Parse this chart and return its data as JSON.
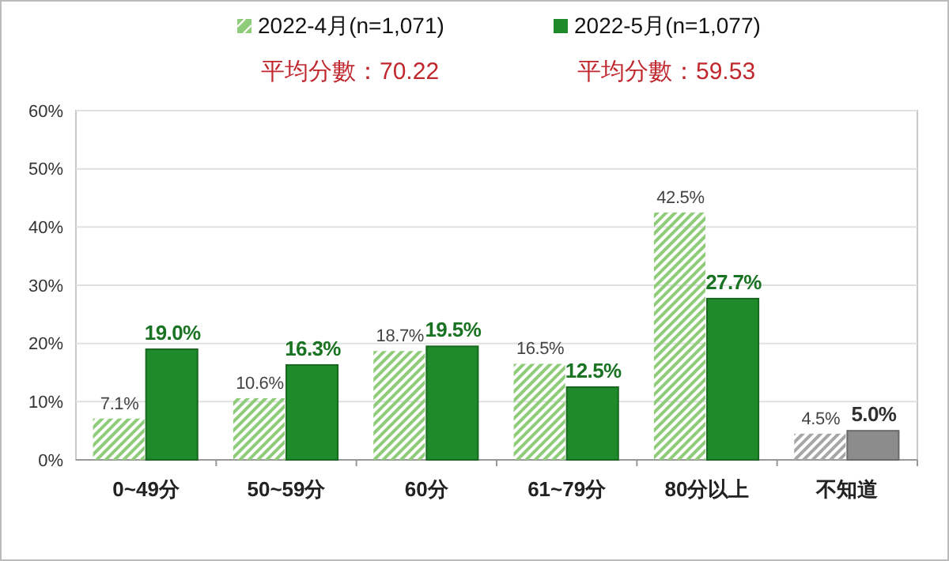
{
  "chart_data": {
    "type": "bar",
    "categories": [
      "0~49分",
      "50~59分",
      "60分",
      "61~79分",
      "80分以上",
      "不知道"
    ],
    "series": [
      {
        "name": "2022-4月(n=1,071)",
        "color": "#8fcc7a",
        "colors": [
          "#8fcc7a",
          "#8fcc7a",
          "#8fcc7a",
          "#8fcc7a",
          "#8fcc7a",
          "#a6a6a6"
        ],
        "values": [
          7.1,
          10.6,
          18.7,
          16.5,
          42.5,
          4.5
        ]
      },
      {
        "name": "2022-5月(n=1,077)",
        "color": "#1f8a2a",
        "colors": [
          "#1f8a2a",
          "#1f8a2a",
          "#1f8a2a",
          "#1f8a2a",
          "#1f8a2a",
          "#8c8c8c"
        ],
        "values": [
          19.0,
          16.3,
          19.5,
          12.5,
          27.7,
          5.0
        ]
      }
    ],
    "value_labels": [
      [
        "7.1%",
        "10.6%",
        "18.7%",
        "16.5%",
        "42.5%",
        "4.5%"
      ],
      [
        "19.0%",
        "16.3%",
        "19.5%",
        "12.5%",
        "27.7%",
        "5.0%"
      ]
    ],
    "annotations": [
      "平均分數：70.22",
      "平均分數：59.53"
    ],
    "ylim": [
      0,
      60
    ],
    "yticks": [
      {
        "value": 0,
        "label": "0%"
      },
      {
        "value": 10,
        "label": "10%"
      },
      {
        "value": 20,
        "label": "20%"
      },
      {
        "value": 30,
        "label": "30%"
      },
      {
        "value": 40,
        "label": "40%"
      },
      {
        "value": 50,
        "label": "50%"
      },
      {
        "value": 60,
        "label": "60%"
      }
    ],
    "grid": "y",
    "legend": "top"
  }
}
